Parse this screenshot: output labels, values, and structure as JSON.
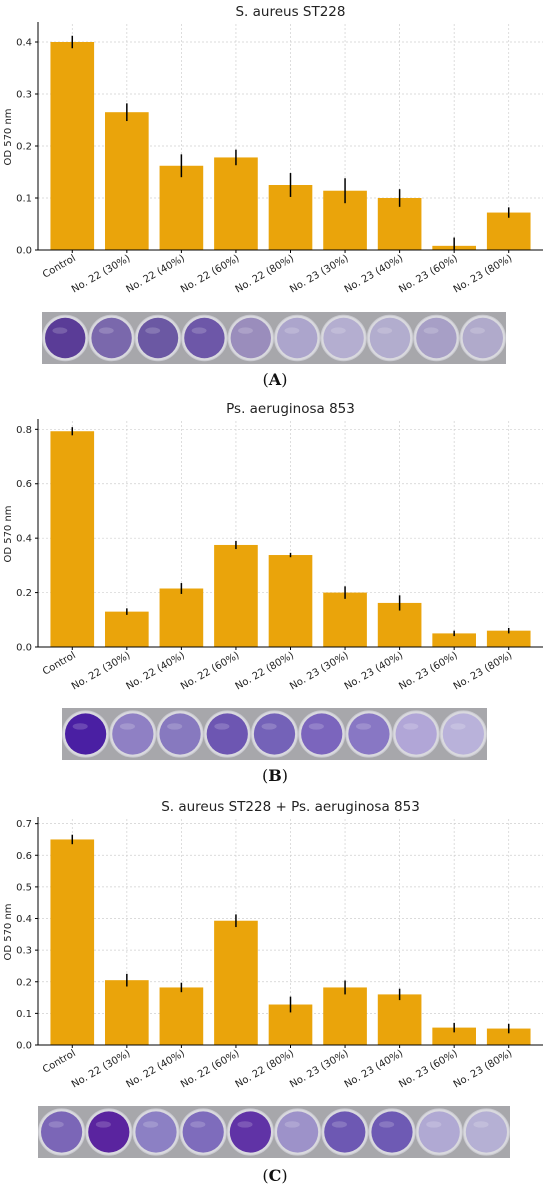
{
  "colors": {
    "bar": "#eaa40b",
    "error_bar": "#000000",
    "grid": "#cfcfcf",
    "axis": "#000000",
    "well_border": "#c9c9cf",
    "plate_bg": "#a7a7ab"
  },
  "chart_data": [
    {
      "type": "bar",
      "title": "S. aureus ST228",
      "xlabel": "",
      "ylabel": "OD 570 nm",
      "ylim": [
        0,
        0.45
      ],
      "yticks": [
        "0.0",
        "0.1",
        "0.2",
        "0.3",
        "0.4"
      ],
      "ytick_values": [
        0,
        0.1,
        0.2,
        0.3,
        0.4
      ],
      "grid": true,
      "categories": [
        "Control",
        "No. 22 (30%)",
        "No. 22 (40%)",
        "No. 22 (60%)",
        "No. 22 (80%)",
        "No. 23 (30%)",
        "No. 23 (40%)",
        "No. 23 (60%)",
        "No. 23 (80%)"
      ],
      "values": [
        0.4,
        0.265,
        0.162,
        0.178,
        0.125,
        0.114,
        0.1,
        0.008,
        0.072
      ],
      "errors": [
        0.012,
        0.017,
        0.022,
        0.015,
        0.023,
        0.024,
        0.017,
        0.016,
        0.01
      ],
      "panel_label": "A",
      "plate": {
        "wells": [
          "#5a3c97",
          "#7a68ac",
          "#6b58a3",
          "#6d57a8",
          "#9a8dbc",
          "#aca5cc",
          "#b4aed0",
          "#b2adce",
          "#a79fc6",
          "#b0aacb"
        ]
      }
    },
    {
      "type": "bar",
      "title": "Ps. aeruginosa 853",
      "xlabel": "",
      "ylabel": "OD 570 nm",
      "ylim": [
        0,
        0.86
      ],
      "yticks": [
        "0.0",
        "0.2",
        "0.4",
        "0.6",
        "0.8"
      ],
      "ytick_values": [
        0,
        0.2,
        0.4,
        0.6,
        0.8
      ],
      "grid": true,
      "categories": [
        "Control",
        "No. 22 (30%)",
        "No. 22 (40%)",
        "No. 22 (60%)",
        "No. 22 (80%)",
        "No. 23 (30%)",
        "No. 23 (40%)",
        "No. 23 (60%)",
        "No. 23 (80%)"
      ],
      "values": [
        0.793,
        0.13,
        0.215,
        0.375,
        0.338,
        0.2,
        0.162,
        0.05,
        0.06
      ],
      "errors": [
        0.015,
        0.012,
        0.02,
        0.015,
        0.008,
        0.023,
        0.028,
        0.01,
        0.01
      ],
      "panel_label": "B",
      "plate": {
        "wells": [
          "#4a1fa3",
          "#8f80c4",
          "#8779bf",
          "#6d56b2",
          "#7462b8",
          "#7b65bd",
          "#8877c4",
          "#b1a6d7",
          "#b9b2da"
        ]
      }
    },
    {
      "type": "bar",
      "title": "S. aureus ST228 + Ps. aeruginosa 853",
      "xlabel": "",
      "ylabel": "OD 570 nm",
      "ylim": [
        0,
        0.74
      ],
      "yticks": [
        "0.0",
        "0.1",
        "0.2",
        "0.3",
        "0.4",
        "0.5",
        "0.6",
        "0.7"
      ],
      "ytick_values": [
        0,
        0.1,
        0.2,
        0.3,
        0.4,
        0.5,
        0.6,
        0.7
      ],
      "grid": true,
      "categories": [
        "Control",
        "No. 22 (30%)",
        "No. 22 (40%)",
        "No. 22 (60%)",
        "No. 22 (80%)",
        "No. 23 (30%)",
        "No. 23 (40%)",
        "No. 23 (60%)",
        "No. 23 (80%)"
      ],
      "values": [
        0.65,
        0.205,
        0.182,
        0.393,
        0.128,
        0.182,
        0.16,
        0.055,
        0.052
      ],
      "errors": [
        0.015,
        0.02,
        0.015,
        0.02,
        0.025,
        0.022,
        0.018,
        0.015,
        0.015
      ],
      "panel_label": "C",
      "plate": {
        "wells": [
          "#7b66b7",
          "#5a249f",
          "#8c80c4",
          "#7e6cbc",
          "#6033a6",
          "#9d92c9",
          "#6d58b3",
          "#6e5ab4",
          "#b0a9d3",
          "#b5b0d4"
        ]
      }
    }
  ]
}
